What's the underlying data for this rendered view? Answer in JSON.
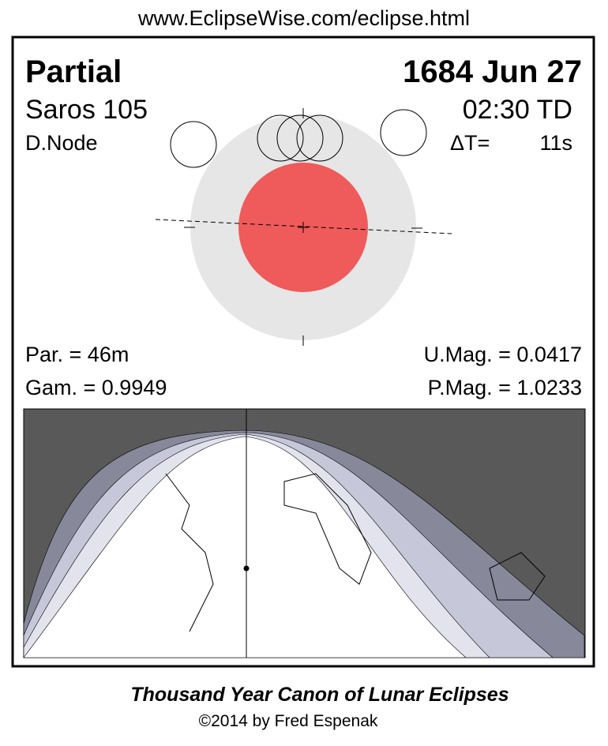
{
  "header": {
    "url": "www.EclipseWise.com/eclipse.html"
  },
  "eclipse": {
    "type": "Partial",
    "date": "1684 Jun 27",
    "saros": "Saros 105",
    "time": "02:30 TD",
    "node": "D.Node",
    "delta_t_label": "ΔT=",
    "delta_t": "11s",
    "partial_duration": "Par. =  46m",
    "gamma": "Gam. = 0.9949",
    "umbral_mag": "U.Mag. = 0.0417",
    "penumbral_mag": "P.Mag. = 1.0233"
  },
  "footer": {
    "title": "Thousand Year Canon of Lunar Eclipses",
    "credit": "©2014 by Fred Espenak"
  }
}
